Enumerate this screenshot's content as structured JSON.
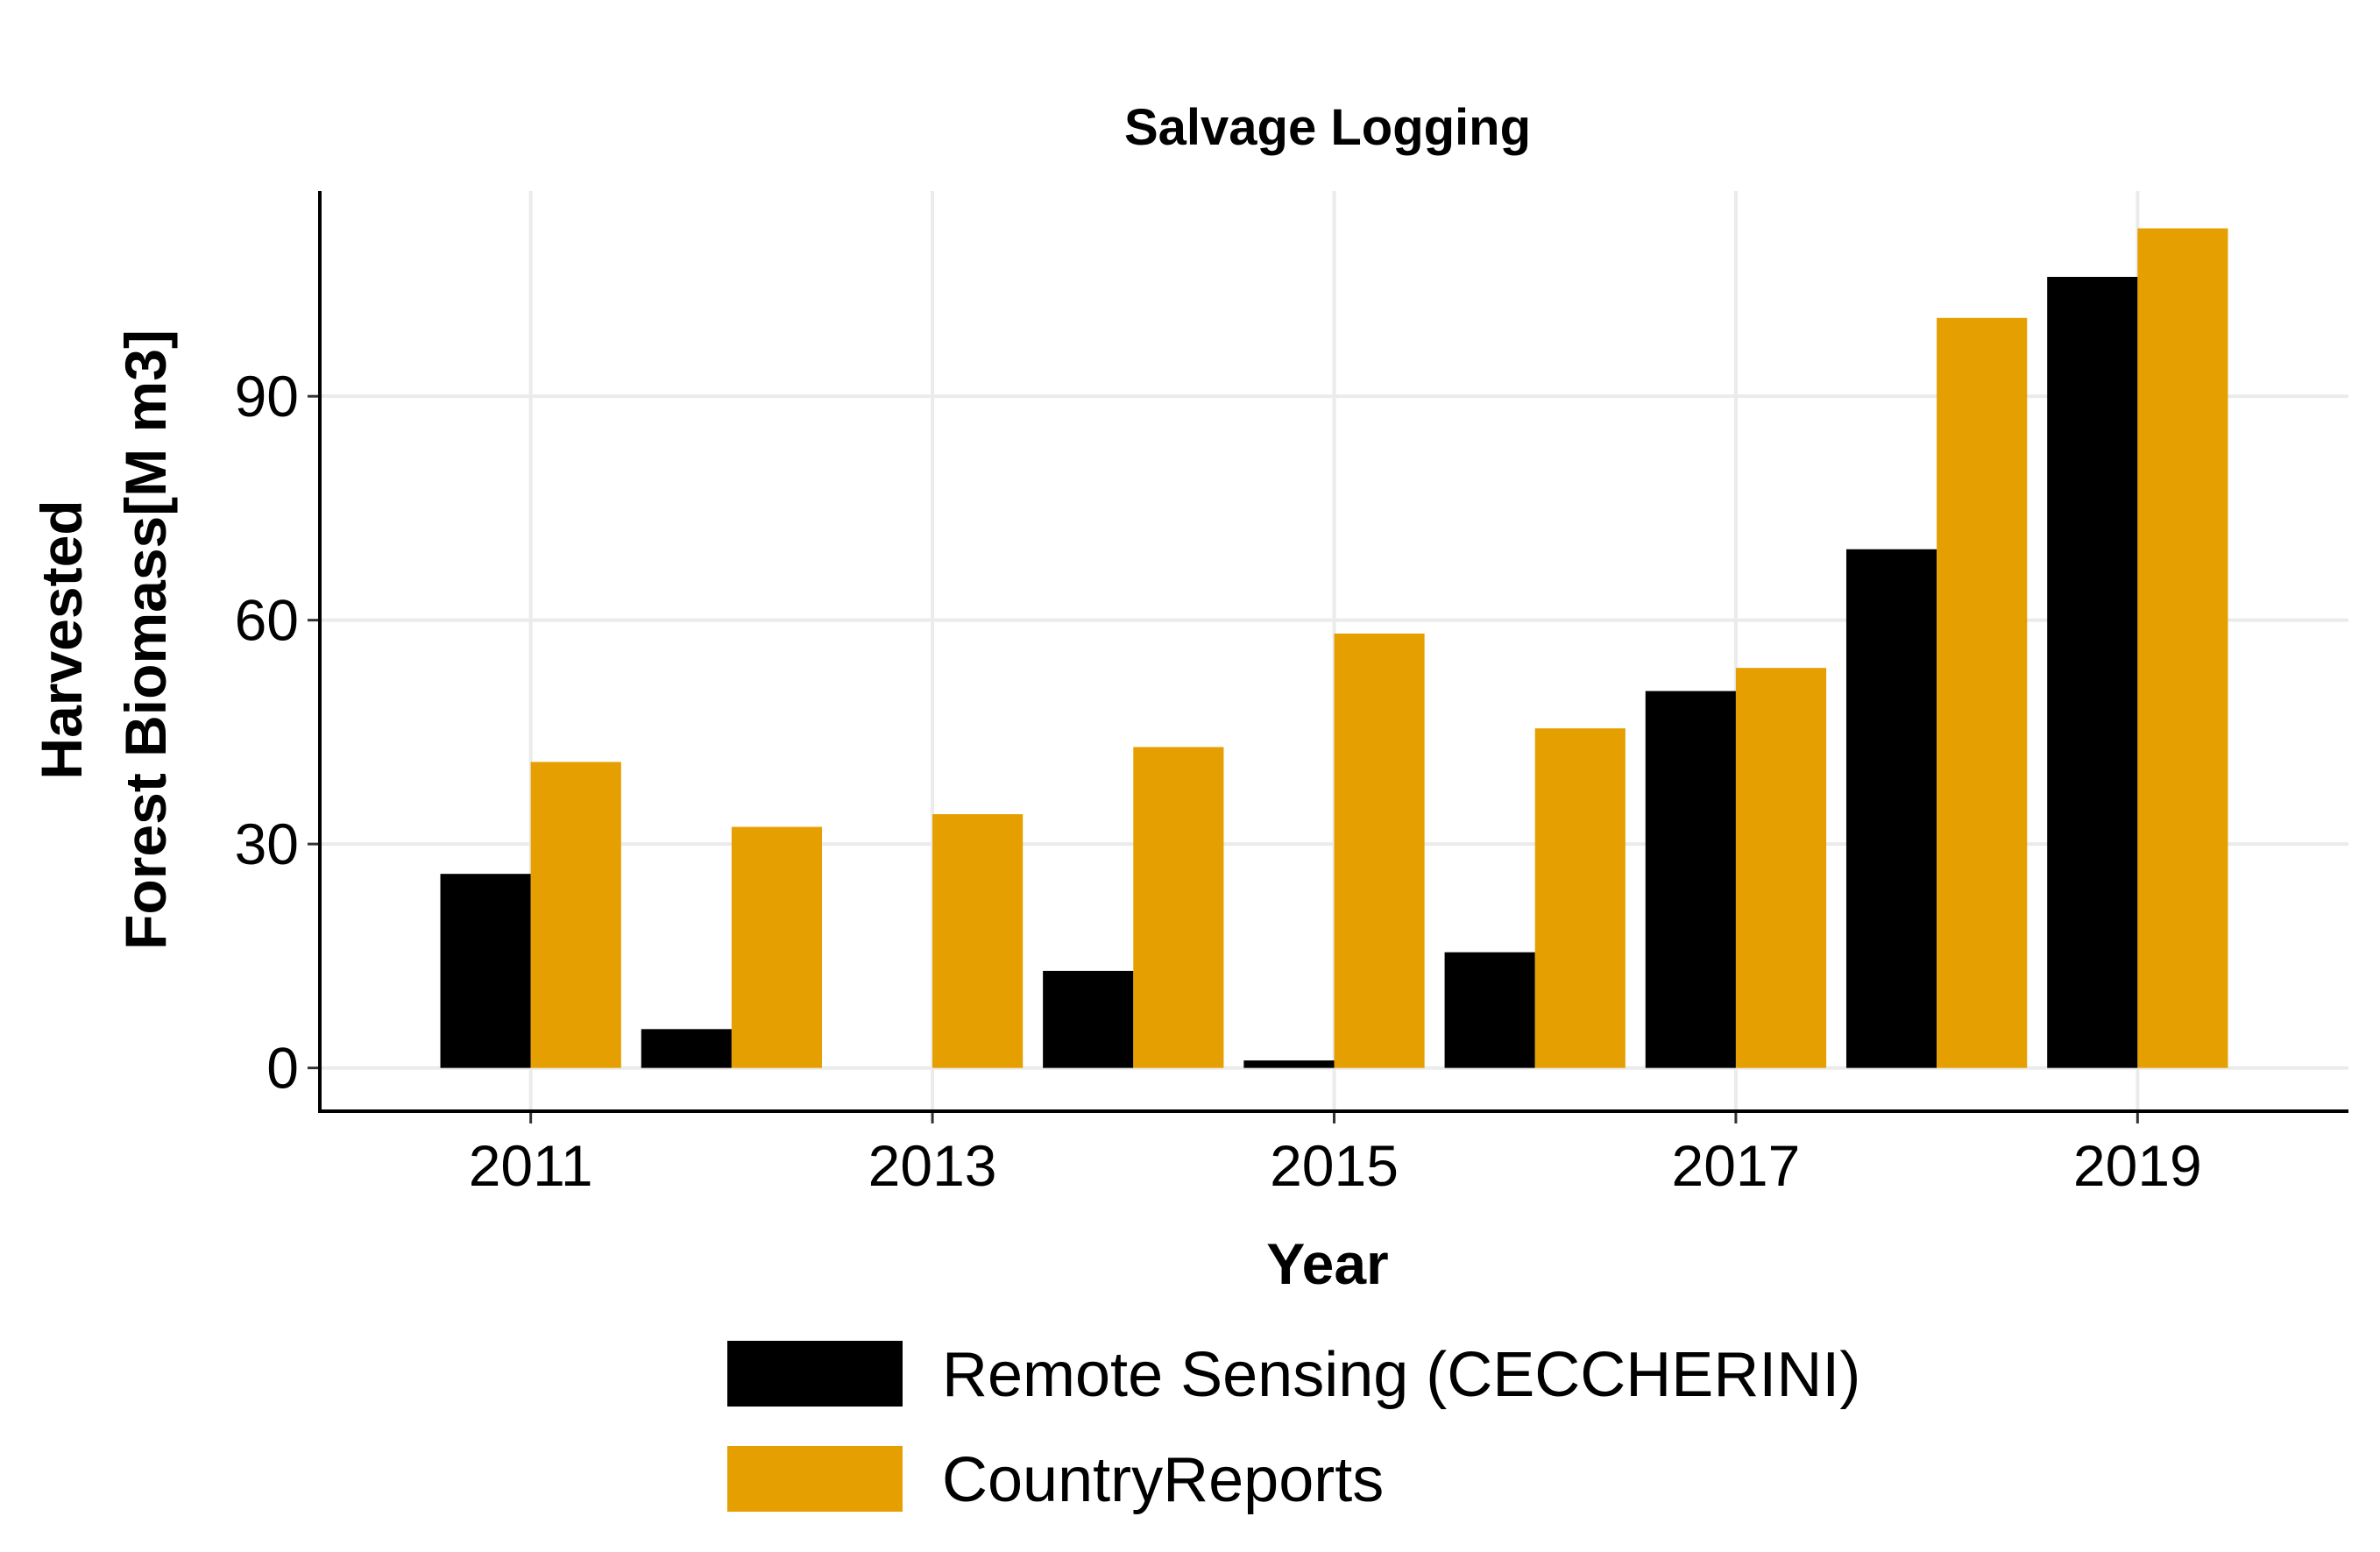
{
  "chart_data": {
    "type": "bar",
    "title": "Salvage Logging",
    "xlabel": "Year",
    "ylabel_lines": [
      "Harvested",
      "Forest Biomass[M m3]"
    ],
    "x": [
      2011,
      2012,
      2013,
      2014,
      2015,
      2016,
      2017,
      2018,
      2019
    ],
    "x_ticks": [
      2011,
      2013,
      2015,
      2017,
      2019
    ],
    "y_ticks": [
      0,
      30,
      60,
      90
    ],
    "xlim": [
      2009.95,
      2020.05
    ],
    "ylim": [
      -5.8,
      117.5
    ],
    "grid": true,
    "legend_position": "bottom",
    "series": [
      {
        "name": "Remote Sensing (CECCHERINI)",
        "color": "#000000",
        "values": [
          26,
          5.2,
          0,
          13,
          1,
          15.5,
          50.5,
          69.5,
          106
        ]
      },
      {
        "name": "CountryReports",
        "color": "#E69F00",
        "values": [
          41,
          32.3,
          34,
          43,
          58.2,
          45.5,
          53.6,
          100.5,
          112.5
        ]
      }
    ]
  }
}
